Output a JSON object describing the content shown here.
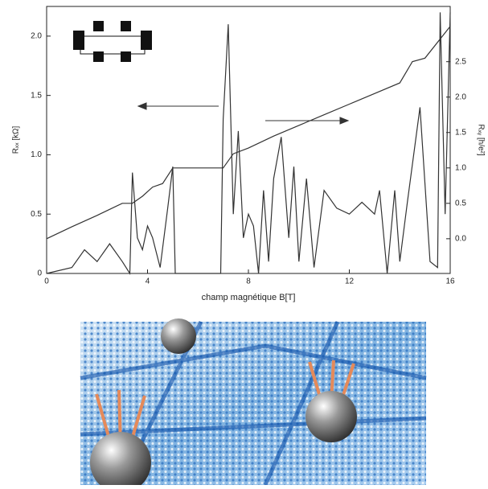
{
  "chart_data": {
    "type": "line",
    "x_label": "champ magnétique B[T]",
    "y_label": "Rₓₓ [kΩ]",
    "y2_label": "Rₓᵧ [h/e²]",
    "xlim": [
      0,
      16
    ],
    "xticks": [
      0,
      4,
      8,
      12,
      16
    ],
    "ylim": [
      0,
      2.25
    ],
    "yticks": [
      0,
      0.5,
      {
        "value": 1,
        "label": "1.0"
      },
      1.5,
      {
        "value": 2,
        "label": "2.0"
      }
    ],
    "y2lim": [
      -0.49,
      3.28
    ],
    "y2ticks": [
      {
        "value": 0,
        "label": "0.0"
      },
      0.5,
      {
        "value": 1,
        "label": "1.0"
      },
      1.5,
      {
        "value": 2,
        "label": "2.0"
      },
      2.5
    ],
    "series": [
      {
        "axis": "y",
        "color": "#333333",
        "x": [
          0,
          1,
          1.5,
          2,
          2.5,
          3,
          3.3,
          3.4,
          3.6,
          3.8,
          4,
          4.2,
          4.5,
          4.8,
          5,
          5.1,
          6.9,
          7,
          7.2,
          7.4,
          7.6,
          7.8,
          8,
          8.2,
          8.4,
          8.6,
          8.8,
          9,
          9.3,
          9.6,
          9.8,
          10,
          10.3,
          10.6,
          11,
          11.5,
          12,
          12.5,
          13,
          13.2,
          13.5,
          13.8,
          14,
          14.3,
          14.8,
          15.2,
          15.5,
          15.6,
          15.8,
          16
        ],
        "values": [
          0,
          0.05,
          0.2,
          0.1,
          0.25,
          0.1,
          0,
          0.85,
          0.3,
          0.2,
          0.4,
          0.3,
          0.05,
          0.55,
          0.9,
          0,
          0,
          1.3,
          2.1,
          0.5,
          1.2,
          0.3,
          0.5,
          0.4,
          0,
          0.7,
          0.1,
          0.8,
          1.15,
          0.3,
          0.9,
          0.1,
          0.8,
          0.05,
          0.7,
          0.55,
          0.5,
          0.6,
          0.5,
          0.7,
          0,
          0.7,
          0.1,
          0.6,
          1.4,
          0.1,
          0.05,
          2.2,
          0.5,
          2.2
        ]
      },
      {
        "axis": "y2",
        "color": "#333333",
        "x": [
          0,
          1,
          2,
          3,
          3.4,
          3.8,
          4.2,
          4.6,
          5,
          7,
          7.4,
          8,
          9,
          10,
          11,
          12,
          13,
          14,
          14.5,
          15,
          16
        ],
        "values": [
          0,
          0.17,
          0.33,
          0.5,
          0.5,
          0.6,
          0.73,
          0.78,
          1.0,
          1.0,
          1.2,
          1.28,
          1.45,
          1.6,
          1.75,
          1.9,
          2.05,
          2.2,
          2.5,
          2.55,
          3.0
        ]
      }
    ]
  }
}
